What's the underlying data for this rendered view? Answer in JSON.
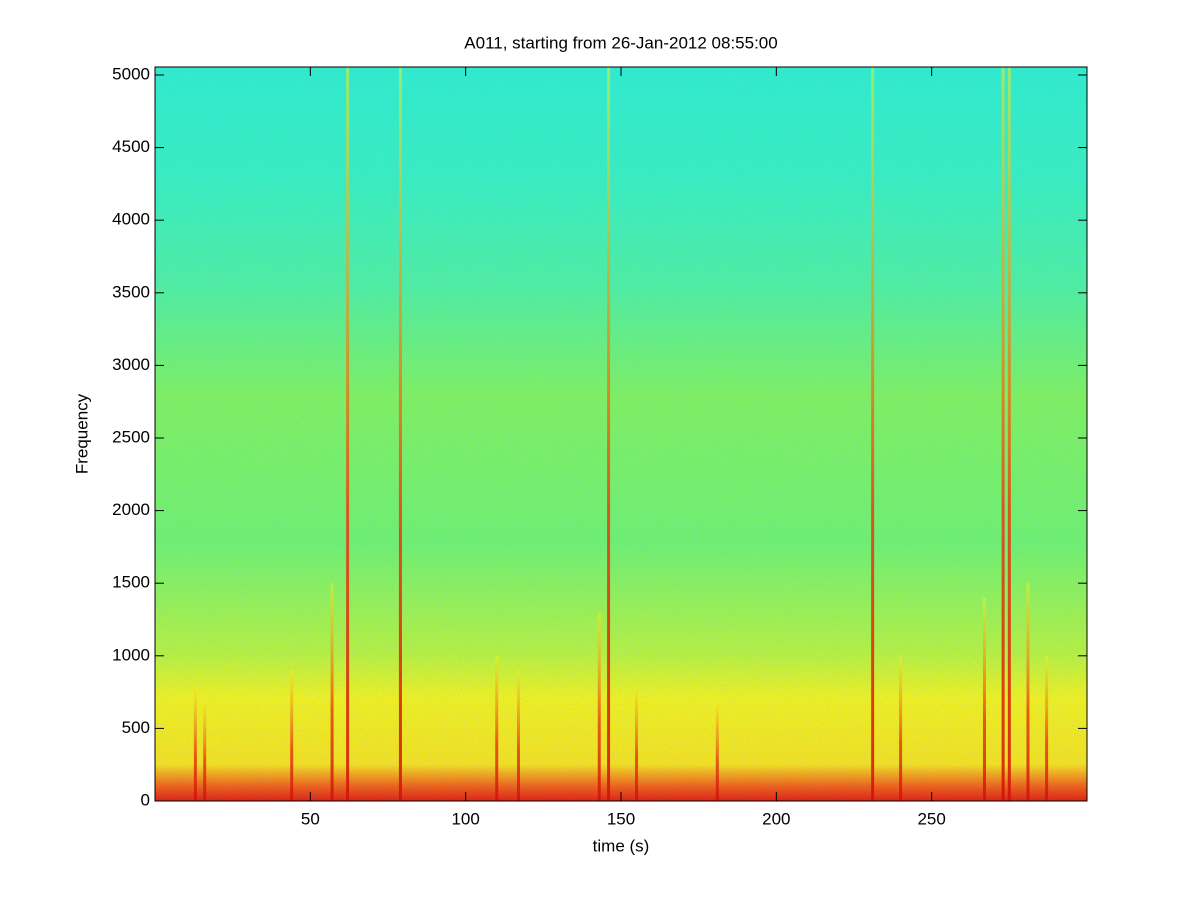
{
  "chart_data": {
    "type": "spectrogram",
    "title": "A011, starting from 26-Jan-2012 08:55:00",
    "x_label": "time (s)",
    "y_label": "Frequency",
    "xlim": [
      0,
      300
    ],
    "ylim": [
      0,
      5055
    ],
    "xticks": [
      50,
      100,
      150,
      200,
      250
    ],
    "yticks": [
      0,
      500,
      1000,
      1500,
      2000,
      2500,
      3000,
      3500,
      4000,
      4500,
      5000
    ],
    "x": [
      13,
      16,
      44,
      57,
      62,
      79,
      110,
      117,
      143,
      146,
      155,
      181,
      231,
      240,
      267,
      273,
      275,
      281,
      287
    ],
    "values": [
      800,
      700,
      900,
      1500,
      5055,
      5055,
      1000,
      900,
      1300,
      5055,
      800,
      700,
      5055,
      1000,
      1400,
      5055,
      5055,
      1500,
      1000
    ]
  }
}
